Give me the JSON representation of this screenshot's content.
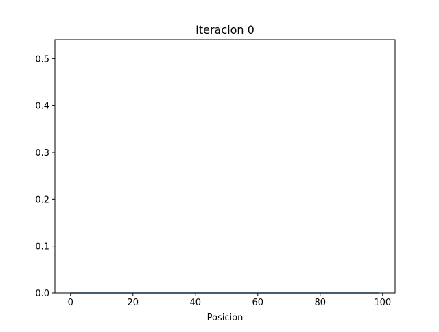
{
  "chart_data": {
    "type": "line",
    "title": "Iteracion 0",
    "xlabel": "Posicion",
    "ylabel": "",
    "xlim": [
      -5,
      104
    ],
    "ylim": [
      0,
      0.54
    ],
    "xticks": [
      0,
      20,
      40,
      60,
      80,
      100
    ],
    "xtick_labels": [
      "0",
      "20",
      "40",
      "60",
      "80",
      "100"
    ],
    "yticks": [
      0.0,
      0.1,
      0.2,
      0.3,
      0.4,
      0.5
    ],
    "ytick_labels": [
      "0.0",
      "0.1",
      "0.2",
      "0.3",
      "0.4",
      "0.5"
    ],
    "grid": false,
    "series": [
      {
        "color": "#1f77b4",
        "x": [
          0,
          99
        ],
        "y": [
          0,
          0
        ]
      }
    ]
  }
}
